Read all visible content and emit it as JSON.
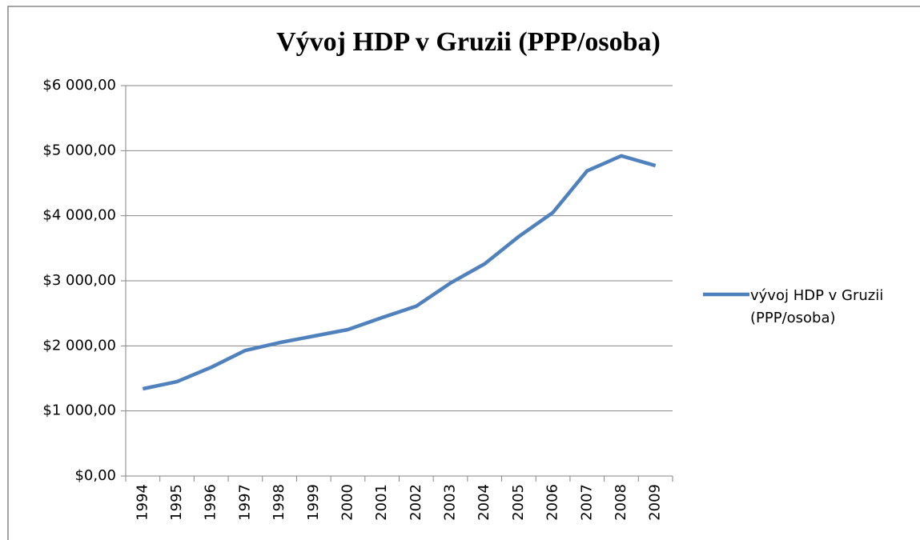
{
  "chart_data": {
    "type": "line",
    "title": "Vývoj HDP v Gruzii (PPP/osoba)",
    "categories": [
      "1994",
      "1995",
      "1996",
      "1997",
      "1998",
      "1999",
      "2000",
      "2001",
      "2002",
      "2003",
      "2004",
      "2005",
      "2006",
      "2007",
      "2008",
      "2009"
    ],
    "series": [
      {
        "name": "vývoj HDP v Gruzii (PPP/osoba)",
        "color": "#4f81bd",
        "values": [
          1340,
          1450,
          1670,
          1930,
          2050,
          2150,
          2250,
          2435,
          2610,
          2965,
          3260,
          3680,
          4050,
          4690,
          4920,
          4770
        ]
      }
    ],
    "ylim": [
      0,
      6000
    ],
    "yticks": [
      {
        "value": 0,
        "label": "$0,00"
      },
      {
        "value": 1000,
        "label": "$1 000,00"
      },
      {
        "value": 2000,
        "label": "$2 000,00"
      },
      {
        "value": 3000,
        "label": "$3 000,00"
      },
      {
        "value": 4000,
        "label": "$4 000,00"
      },
      {
        "value": 5000,
        "label": "$5 000,00"
      },
      {
        "value": 6000,
        "label": "$6 000,00"
      }
    ],
    "grid": true,
    "legend": "right"
  }
}
